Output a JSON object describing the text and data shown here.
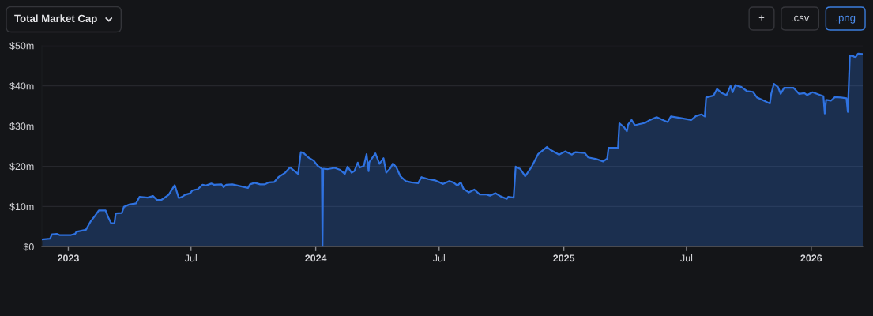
{
  "chart_data": {
    "type": "area",
    "title": "Total Market Cap",
    "annotations": [
      "+",
      ".csv",
      ".png"
    ],
    "x": [
      "2022-11-23",
      "2022-12-05",
      "2022-12-08",
      "2022-12-15",
      "2022-12-19",
      "2023-01-05",
      "2023-01-11",
      "2023-01-13",
      "2023-01-27",
      "2023-01-31",
      "2023-02-03",
      "2023-02-09",
      "2023-02-15",
      "2023-02-25",
      "2023-03-01",
      "2023-03-05",
      "2023-03-10",
      "2023-03-12",
      "2023-03-21",
      "2023-03-24",
      "2023-04-01",
      "2023-04-11",
      "2023-04-16",
      "2023-04-28",
      "2023-05-06",
      "2023-05-12",
      "2023-05-18",
      "2023-05-29",
      "2023-06-07",
      "2023-06-13",
      "2023-06-18",
      "2023-06-22",
      "2023-06-30",
      "2023-07-03",
      "2023-07-11",
      "2023-07-18",
      "2023-07-23",
      "2023-07-31",
      "2023-08-04",
      "2023-08-15",
      "2023-08-18",
      "2023-08-22",
      "2023-08-31",
      "2023-09-23",
      "2023-09-26",
      "2023-10-03",
      "2023-10-11",
      "2023-10-18",
      "2023-10-24",
      "2023-11-01",
      "2023-11-07",
      "2023-11-17",
      "2023-11-24",
      "2023-12-06",
      "2023-12-10",
      "2023-12-14",
      "2023-12-21",
      "2023-12-29",
      "2024-01-04",
      "2024-01-10",
      "2024-01-11",
      "2024-01-12",
      "2024-01-19",
      "2024-01-29",
      "2024-02-06",
      "2024-02-13",
      "2024-02-17",
      "2024-02-23",
      "2024-02-27",
      "2024-03-03",
      "2024-03-06",
      "2024-03-12",
      "2024-03-16",
      "2024-03-19",
      "2024-03-20",
      "2024-03-29",
      "2024-04-04",
      "2024-04-10",
      "2024-04-14",
      "2024-04-20",
      "2024-04-24",
      "2024-04-29",
      "2024-05-05",
      "2024-05-13",
      "2024-05-21",
      "2024-05-31",
      "2024-06-05",
      "2024-06-15",
      "2024-06-25",
      "2024-07-07",
      "2024-07-16",
      "2024-07-22",
      "2024-07-28",
      "2024-08-02",
      "2024-08-06",
      "2024-08-14",
      "2024-08-22",
      "2024-08-30",
      "2024-09-09",
      "2024-09-14",
      "2024-09-22",
      "2024-09-30",
      "2024-10-09",
      "2024-10-11",
      "2024-10-19",
      "2024-10-22",
      "2024-10-29",
      "2024-11-05",
      "2024-11-14",
      "2024-11-24",
      "2024-12-07",
      "2024-12-13",
      "2024-12-25",
      "2025-01-03",
      "2025-01-13",
      "2025-01-18",
      "2025-02-01",
      "2025-02-06",
      "2025-02-18",
      "2025-02-28",
      "2025-03-06",
      "2025-03-08",
      "2025-03-22",
      "2025-03-24",
      "2025-03-31",
      "2025-04-04",
      "2025-04-06",
      "2025-04-11",
      "2025-04-16",
      "2025-04-23",
      "2025-05-01",
      "2025-05-08",
      "2025-05-18",
      "2025-05-26",
      "2025-06-03",
      "2025-06-08",
      "2025-06-22",
      "2025-07-08",
      "2025-07-15",
      "2025-07-23",
      "2025-07-28",
      "2025-07-30",
      "2025-08-10",
      "2025-08-15",
      "2025-08-22",
      "2025-08-29",
      "2025-09-04",
      "2025-09-07",
      "2025-09-11",
      "2025-09-20",
      "2025-09-28",
      "2025-10-07",
      "2025-10-13",
      "2025-10-21",
      "2025-11-01",
      "2025-11-03",
      "2025-11-07",
      "2025-11-13",
      "2025-11-17",
      "2025-11-22",
      "2025-12-06",
      "2025-12-14",
      "2025-12-22",
      "2025-12-26",
      "2026-01-03",
      "2026-01-14",
      "2026-01-19",
      "2026-01-21",
      "2026-01-23",
      "2026-01-30",
      "2026-02-05",
      "2026-02-14",
      "2026-02-22",
      "2026-02-24",
      "2026-02-27",
      "2026-03-04",
      "2026-03-07",
      "2026-03-11",
      "2026-03-18"
    ],
    "series": [
      {
        "color": "#2f72e0",
        "values": [
          1.8,
          2.0,
          3.1,
          3.2,
          2.9,
          2.9,
          3.2,
          3.7,
          4.2,
          5.4,
          6.3,
          7.6,
          9.0,
          9.0,
          7.3,
          5.9,
          5.8,
          8.3,
          8.4,
          9.9,
          10.5,
          10.8,
          12.4,
          12.2,
          12.6,
          11.6,
          11.6,
          12.9,
          15.3,
          12.1,
          12.4,
          12.9,
          13.3,
          14.0,
          14.3,
          15.4,
          15.2,
          15.7,
          15.4,
          15.5,
          14.8,
          15.4,
          15.5,
          14.6,
          15.5,
          15.9,
          15.5,
          15.5,
          16.0,
          16.1,
          17.3,
          18.4,
          19.7,
          18.1,
          23.5,
          23.3,
          22.2,
          21.4,
          20.1,
          19.4,
          0,
          19.4,
          19.3,
          19.6,
          19.1,
          18.1,
          19.9,
          18.4,
          18.8,
          20.9,
          19.7,
          20.1,
          23.0,
          18.8,
          21.0,
          23.2,
          20.6,
          22.0,
          18.4,
          19.5,
          20.7,
          19.7,
          17.5,
          16.3,
          16.0,
          15.8,
          17.3,
          16.8,
          16.5,
          15.6,
          16.3,
          16.0,
          15.2,
          16.0,
          14.4,
          13.5,
          14.2,
          13.0,
          13.0,
          12.7,
          13.3,
          12.5,
          11.9,
          12.4,
          12.2,
          19.9,
          19.3,
          17.5,
          19.7,
          23.0,
          24.8,
          24.0,
          22.9,
          23.7,
          22.9,
          23.5,
          23.3,
          22.2,
          21.8,
          21.2,
          21.9,
          24.6,
          24.6,
          30.7,
          29.7,
          28.7,
          30.4,
          31.5,
          30.2,
          30.5,
          30.8,
          31.5,
          32.2,
          31.6,
          31.0,
          32.4,
          32.0,
          31.5,
          32.5,
          32.9,
          32.4,
          37.1,
          37.6,
          39.2,
          38.2,
          37.7,
          40.0,
          38.4,
          40.2,
          39.7,
          38.7,
          38.5,
          37.1,
          36.5,
          35.6,
          38.0,
          40.5,
          39.7,
          38.0,
          39.5,
          39.5,
          38.0,
          38.2,
          37.7,
          38.4,
          37.7,
          37.4,
          33.1,
          36.5,
          36.3,
          37.2,
          37.1,
          36.9,
          33.5,
          47.5,
          47.4,
          47.0,
          48.0,
          47.9
        ]
      }
    ],
    "xlim": [
      "2022-11-23",
      "2026-03-18"
    ],
    "xticks": [
      {
        "value": "2023-01-01",
        "label": "2023"
      },
      {
        "value": "2023-07-01",
        "label": "Jul"
      },
      {
        "value": "2024-01-01",
        "label": "2024"
      },
      {
        "value": "2024-07-01",
        "label": "Jul"
      },
      {
        "value": "2025-01-01",
        "label": "2025"
      },
      {
        "value": "2025-07-01",
        "label": "Jul"
      },
      {
        "value": "2026-01-01",
        "label": "2026"
      }
    ],
    "ylim": [
      0,
      50
    ],
    "yticks": [
      {
        "value": 0,
        "label": "$0"
      },
      {
        "value": 10,
        "label": "$10m"
      },
      {
        "value": 20,
        "label": "$20m"
      },
      {
        "value": 30,
        "label": "$30m"
      },
      {
        "value": 40,
        "label": "$40m"
      },
      {
        "value": 50,
        "label": "$50m"
      }
    ],
    "grid": "y"
  }
}
